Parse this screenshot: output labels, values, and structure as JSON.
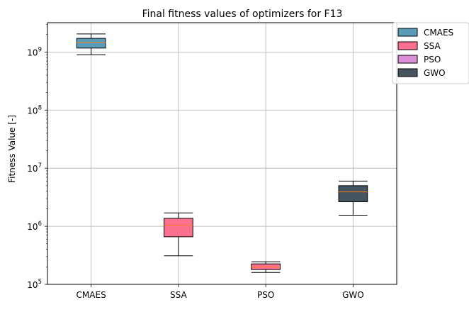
{
  "chart_data": {
    "type": "box",
    "title": "Final fitness values of optimizers for F13",
    "xlabel": "",
    "ylabel": "Fitness Value [-]",
    "yscale": "log",
    "ylim": [
      100000,
      3200000000
    ],
    "grid": true,
    "legend_position": "outside-top-right",
    "categories": [
      "CMAES",
      "SSA",
      "PSO",
      "GWO"
    ],
    "y_tick_labels": [
      {
        "base": "10",
        "exp": "5"
      },
      {
        "base": "10",
        "exp": "6"
      },
      {
        "base": "10",
        "exp": "7"
      },
      {
        "base": "10",
        "exp": "8"
      },
      {
        "base": "10",
        "exp": "9"
      }
    ],
    "series": [
      {
        "name": "CMAES",
        "color": "#5a9bb8",
        "whisker_low": 900000000,
        "q1": 1170000000,
        "median": 1450000000,
        "q3": 1720000000,
        "whisker_high": 2050000000
      },
      {
        "name": "SSA",
        "color": "#fd7190",
        "whisker_low": 310000,
        "q1": 660000,
        "median": 1050000,
        "q3": 1370000,
        "whisker_high": 1700000
      },
      {
        "name": "PSO",
        "color": "#ff6e94",
        "legend_color": "#da8fd8",
        "whisker_low": 160000,
        "q1": 180000,
        "median": 200000,
        "q3": 225000,
        "whisker_high": 245000
      },
      {
        "name": "GWO",
        "color": "#455560",
        "whisker_low": 1550000,
        "q1": 2650000,
        "median": 3900000,
        "q3": 5000000,
        "whisker_high": 6000000
      }
    ],
    "median_color": "#ff7f0e"
  }
}
